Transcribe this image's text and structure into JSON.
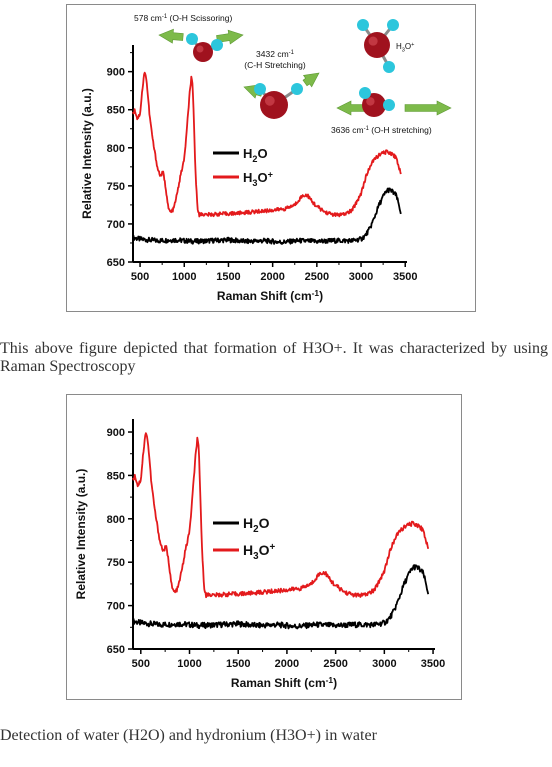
{
  "chart_data": [
    {
      "type": "line",
      "xlabel": "Raman Shift (cm-1)",
      "ylabel": "Relative Intensity (a.u.)",
      "xlim": [
        420,
        3520
      ],
      "ylim": [
        650,
        935
      ],
      "xticks": [
        "500",
        "1000",
        "1500",
        "2000",
        "2500",
        "3000",
        "3500"
      ],
      "yticks": [
        "650",
        "700",
        "750",
        "800",
        "850",
        "900"
      ],
      "legend": "middle-left",
      "series": [
        {
          "name": "H2O",
          "color": "#000000",
          "x": [
            420,
            500,
            700,
            900,
            1100,
            1300,
            1500,
            1700,
            1900,
            2100,
            2300,
            2500,
            2700,
            2900,
            3000,
            3050,
            3100,
            3150,
            3200,
            3250,
            3300,
            3350,
            3400,
            3450
          ],
          "y": [
            682,
            680,
            678,
            679,
            677,
            678,
            679,
            677,
            678,
            676,
            678,
            677,
            678,
            678,
            680,
            685,
            694,
            708,
            724,
            736,
            745,
            743,
            737,
            715
          ]
        },
        {
          "name": "H3O+",
          "color": "#e31a1c",
          "x": [
            420,
            440,
            470,
            500,
            520,
            545,
            560,
            580,
            610,
            650,
            700,
            730,
            760,
            790,
            820,
            850,
            880,
            920,
            960,
            1000,
            1030,
            1060,
            1080,
            1095,
            1110,
            1130,
            1150,
            1170,
            1200,
            1250,
            1400,
            1600,
            1800,
            2000,
            2150,
            2250,
            2320,
            2360,
            2400,
            2440,
            2500,
            2600,
            2700,
            2800,
            2900,
            3000,
            3050,
            3100,
            3150,
            3200,
            3250,
            3300,
            3350,
            3400,
            3450
          ],
          "y": [
            845,
            850,
            838,
            845,
            870,
            895,
            900,
            880,
            840,
            805,
            772,
            763,
            768,
            748,
            720,
            715,
            720,
            740,
            765,
            785,
            825,
            870,
            892,
            880,
            830,
            760,
            722,
            712,
            713,
            712,
            713,
            714,
            716,
            718,
            720,
            725,
            735,
            738,
            737,
            730,
            723,
            715,
            712,
            712,
            718,
            740,
            760,
            775,
            785,
            790,
            793,
            795,
            792,
            787,
            765
          ]
        }
      ]
    },
    {
      "type": "line",
      "xlabel": "Raman Shift (cm-1)",
      "ylabel": "Relative Intensity (a.u.)",
      "xlim": [
        420,
        3520
      ],
      "ylim": [
        650,
        915
      ],
      "xticks": [
        "500",
        "1000",
        "1500",
        "2000",
        "2500",
        "3000",
        "3500"
      ],
      "yticks": [
        "650",
        "700",
        "750",
        "800",
        "850",
        "900"
      ],
      "legend": "middle-left",
      "series": [
        {
          "name": "H2O",
          "color": "#000000",
          "x": [
            420,
            500,
            700,
            900,
            1100,
            1300,
            1500,
            1700,
            1900,
            2100,
            2300,
            2500,
            2700,
            2900,
            3000,
            3050,
            3100,
            3150,
            3200,
            3250,
            3300,
            3350,
            3400,
            3450
          ],
          "y": [
            682,
            680,
            678,
            679,
            677,
            678,
            679,
            677,
            678,
            676,
            678,
            677,
            678,
            678,
            680,
            685,
            694,
            708,
            724,
            736,
            745,
            743,
            737,
            715
          ]
        },
        {
          "name": "H3O+",
          "color": "#e31a1c",
          "x": [
            420,
            440,
            470,
            500,
            520,
            545,
            560,
            580,
            610,
            650,
            700,
            730,
            760,
            790,
            820,
            850,
            880,
            920,
            960,
            1000,
            1030,
            1060,
            1080,
            1095,
            1110,
            1130,
            1150,
            1170,
            1200,
            1250,
            1400,
            1600,
            1800,
            2000,
            2150,
            2250,
            2320,
            2360,
            2400,
            2440,
            2500,
            2600,
            2700,
            2800,
            2900,
            3000,
            3050,
            3100,
            3150,
            3200,
            3250,
            3300,
            3350,
            3400,
            3450
          ],
          "y": [
            845,
            850,
            838,
            845,
            870,
            895,
            900,
            880,
            840,
            805,
            772,
            763,
            768,
            748,
            720,
            715,
            720,
            740,
            765,
            785,
            825,
            870,
            892,
            880,
            830,
            760,
            722,
            712,
            713,
            712,
            713,
            714,
            716,
            718,
            720,
            725,
            735,
            738,
            737,
            730,
            723,
            715,
            712,
            712,
            718,
            740,
            760,
            775,
            785,
            790,
            793,
            795,
            792,
            787,
            765
          ]
        }
      ]
    }
  ],
  "annotations": {
    "scissoring": "578 cm-1 (O-H Scissoring)",
    "ch_stretch_line1": "3432 cm-1",
    "ch_stretch_line2": "(C-H Stretching)",
    "h3o_label": "H3O+",
    "oh_stretch": "3636 cm-1 (O-H stretching)"
  },
  "captions": {
    "caption1": "This above figure depicted that formation of H3O+. It was characterized by using Raman Spectroscopy",
    "caption2": "Detection of water (H2O) and hydronium (H3O+) in water"
  },
  "colors": {
    "oxygen": "#a0121e",
    "hydrogen": "#2cc6dc",
    "arrow": "#7dba4a"
  }
}
